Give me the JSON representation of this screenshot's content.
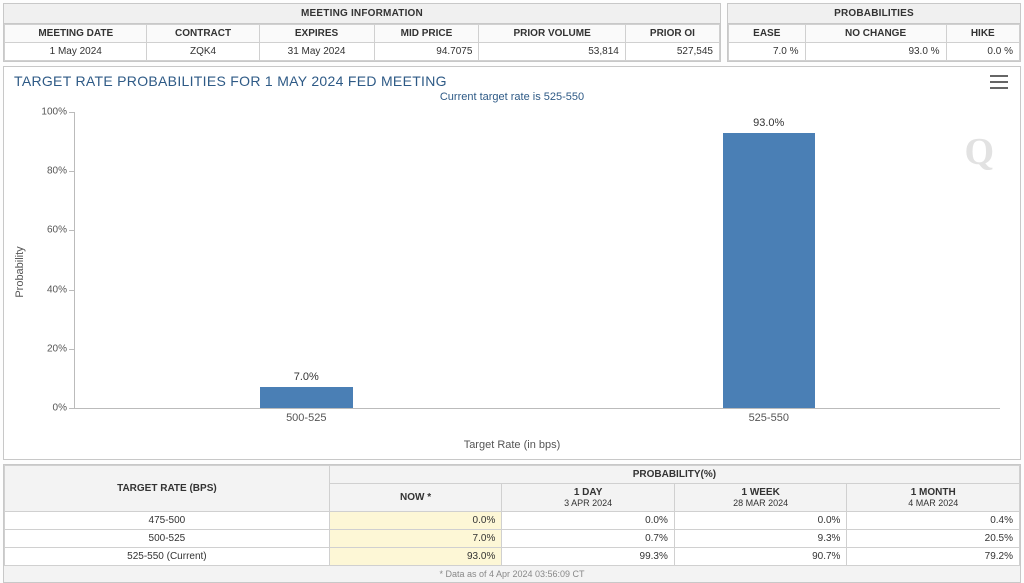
{
  "meeting_panel": {
    "title": "MEETING INFORMATION",
    "headers": [
      "MEETING DATE",
      "CONTRACT",
      "EXPIRES",
      "MID PRICE",
      "PRIOR VOLUME",
      "PRIOR OI"
    ],
    "row": [
      "1 May 2024",
      "ZQK4",
      "31 May 2024",
      "94.7075",
      "53,814",
      "527,545"
    ]
  },
  "prob_panel": {
    "title": "PROBABILITIES",
    "headers": [
      "EASE",
      "NO CHANGE",
      "HIKE"
    ],
    "row": [
      "7.0 %",
      "93.0 %",
      "0.0 %"
    ]
  },
  "chart": {
    "title": "TARGET RATE PROBABILITIES FOR 1 MAY 2024 FED MEETING",
    "subtitle": "Current target rate is 525-550",
    "xaxis_title": "Target Rate (in bps)",
    "yaxis_title": "Probability",
    "ylim": [
      0,
      100
    ],
    "ytick_step": 20,
    "ytick_suffix": "%",
    "bar_color": "#4a7fb5",
    "bar_width_pct": 10,
    "categories": [
      "500-525",
      "525-550"
    ],
    "values": [
      7.0,
      93.0
    ],
    "value_labels": [
      "7.0%",
      "93.0%"
    ],
    "x_positions_pct": [
      25,
      75
    ],
    "watermark": "Q"
  },
  "bottom": {
    "target_header": "TARGET RATE (BPS)",
    "prob_header": "PROBABILITY(%)",
    "col_labels": [
      "NOW",
      "1 DAY",
      "1 WEEK",
      "1 MONTH"
    ],
    "col_sublabels": [
      "",
      "3 APR 2024",
      "28 MAR 2024",
      "4 MAR 2024"
    ],
    "now_star": "*",
    "rows": [
      {
        "label": "475-500",
        "vals": [
          "0.0%",
          "0.0%",
          "0.0%",
          "0.4%"
        ],
        "hl": true
      },
      {
        "label": "500-525",
        "vals": [
          "7.0%",
          "0.7%",
          "9.3%",
          "20.5%"
        ],
        "hl": true
      },
      {
        "label": "525-550 (Current)",
        "vals": [
          "93.0%",
          "99.3%",
          "90.7%",
          "79.2%"
        ],
        "hl": true
      }
    ],
    "footnote": "* Data as of 4 Apr 2024 03:56:09 CT"
  }
}
